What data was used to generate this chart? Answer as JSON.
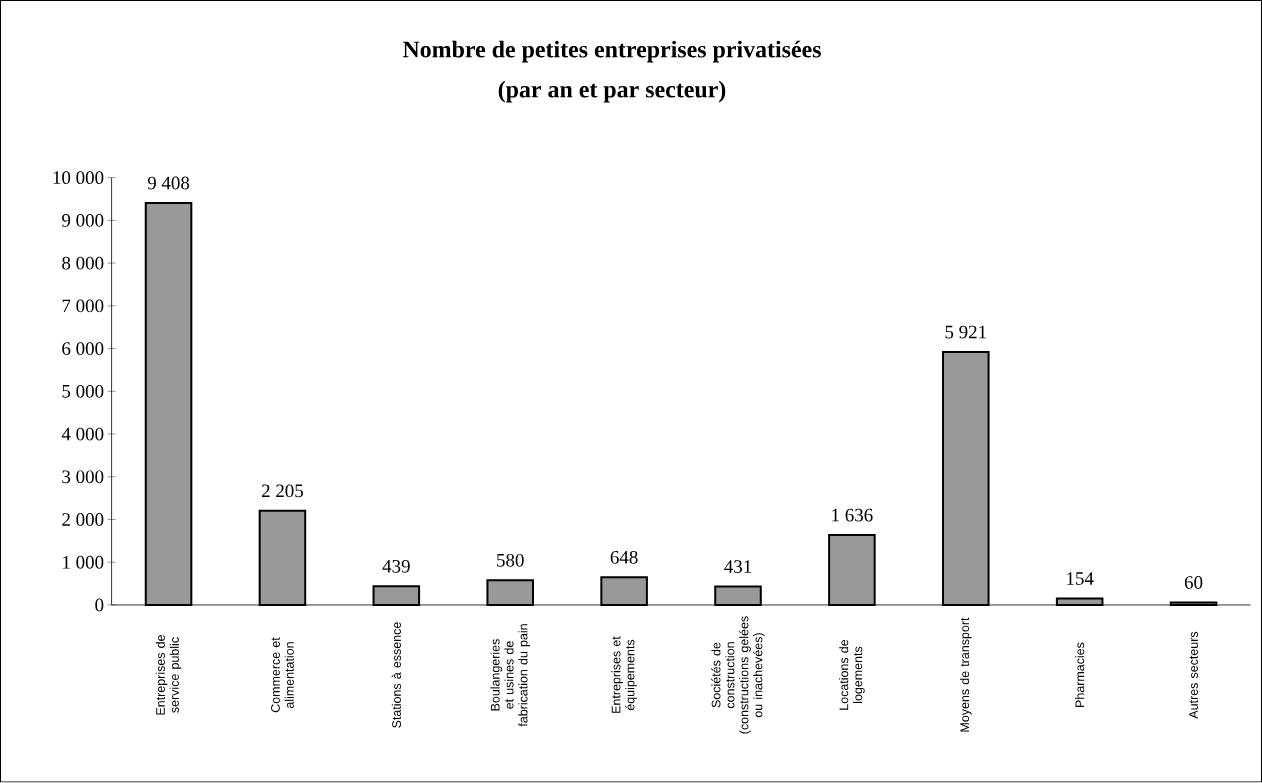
{
  "chart_data": {
    "type": "bar",
    "title": "Nombre de petites entreprises privatisées",
    "subtitle": "(par an et par secteur)",
    "categories": [
      "Entreprises de service public",
      "Commerce et alimentation",
      "Stations à essence",
      "Boulangeries et usines de fabrication du pain",
      "Entreprises et équipements",
      "Sociétés de construction (constructions gelées ou inachevées)",
      "Locations de logements",
      "Moyens de transport",
      "Pharmacies",
      "Autres secteurs"
    ],
    "values": [
      9408,
      2205,
      439,
      580,
      648,
      431,
      1636,
      5921,
      154,
      60
    ],
    "value_labels": [
      "9 408",
      "2 205",
      "439",
      "580",
      "648",
      "431",
      "1 636",
      "5 921",
      "154",
      "60"
    ],
    "color": "#999999",
    "ylim": [
      0,
      10000
    ],
    "yticks": [
      0,
      {
        "value": 1000,
        "label": "1 000"
      },
      {
        "value": 2000,
        "label": "2 000"
      },
      {
        "value": 3000,
        "label": "3 000"
      },
      {
        "value": 4000,
        "label": "4 000"
      },
      {
        "value": 5000,
        "label": "5 000"
      },
      {
        "value": 6000,
        "label": "6 000"
      },
      {
        "value": 7000,
        "label": "7 000"
      },
      {
        "value": 8000,
        "label": "8 000"
      },
      {
        "value": 9000,
        "label": "9 000"
      },
      {
        "value": 10000,
        "label": "10 000"
      }
    ],
    "grid": false
  }
}
